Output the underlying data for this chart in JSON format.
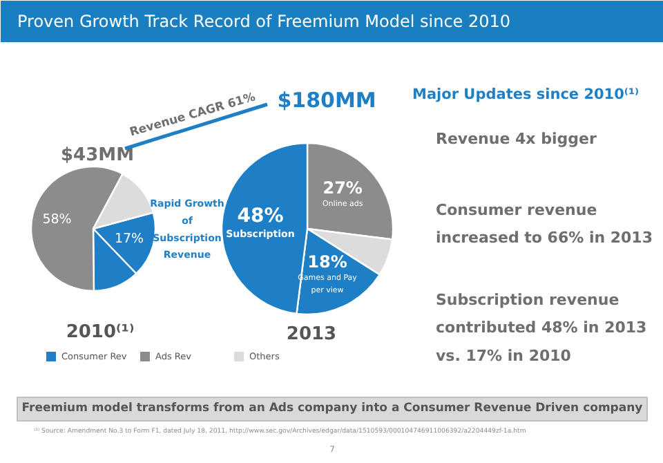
{
  "chart_data": [
    {
      "type": "other",
      "title": "Proven Growth Track Record of Freemium Model since 2010",
      "subtitle": "Major Updates since 2010⁽¹⁾",
      "annotations": [
        "Revenue 4x bigger",
        "Consumer revenue\nincreased to 66% in 2013",
        "Subscription revenue\ncontributed 48% in 2013\nvs. 17% in 2010",
        "Freemium model transforms from an Ads company into a Consumer Revenue Driven company",
        "⁽¹⁾ Source: Amendment No.3 to Form F1, dated July 18, 2011, http://www.sec.gov/Archives/edgar/data/1510593/000104746911006392/a2204449zf-1a.htm",
        "7"
      ]
    },
    {
      "type": "pie",
      "title": "$43MM",
      "xlabel": "2010⁽¹⁾",
      "legend": "bottom",
      "categories": [
        "Consumer Rev",
        null,
        "Ads Rev",
        "Others"
      ],
      "values": [
        17,
        12,
        58,
        13
      ],
      "colors": [
        "#1f7fc6",
        "#1f7fc6",
        "#8c8c8c",
        "#dcdcdc"
      ],
      "value_labels": [
        "17%",
        null,
        "58%",
        null
      ]
    },
    {
      "type": "pie",
      "title": "$180MM",
      "xlabel": "2013",
      "categories": [
        "Online ads",
        null,
        "Games and Pay per view",
        "Subscription"
      ],
      "values": [
        27,
        7,
        18,
        48
      ],
      "colors": [
        "#8c8c8c",
        "#dcdcdc",
        "#1f7fc6",
        "#1f7fc6"
      ],
      "value_labels": [
        "27%",
        null,
        "18%",
        "48%"
      ],
      "annotations": [
        "Revenue CAGR 61%",
        "Rapid Growth\nof\nSubscription\nRevenue"
      ]
    }
  ]
}
